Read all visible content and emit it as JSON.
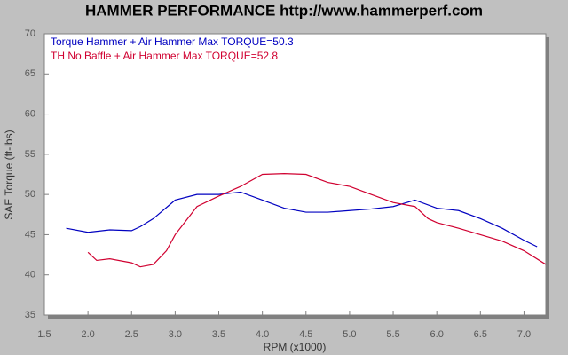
{
  "chart_data": {
    "type": "line",
    "title": "HAMMER PERFORMANCE http://www.hammerperf.com",
    "xlabel": "RPM (x1000)",
    "ylabel": "SAE Torque (ft-lbs)",
    "xlim": [
      1.5,
      7.25
    ],
    "ylim": [
      35,
      70
    ],
    "xticks": [
      1.5,
      {
        "value": 2,
        "label": "2.0"
      },
      2.5,
      {
        "value": 3,
        "label": "3.0"
      },
      3.5,
      {
        "value": 4,
        "label": "4.0"
      },
      4.5,
      {
        "value": 5,
        "label": "5.0"
      },
      5.5,
      {
        "value": 6,
        "label": "6.0"
      },
      6.5,
      {
        "value": 7,
        "label": "7.0"
      }
    ],
    "yticks": [
      35,
      40,
      45,
      50,
      55,
      60,
      65,
      70
    ],
    "grid": false,
    "legend": "top-left",
    "series": [
      {
        "name": "Torque Hammer + Air Hammer  Max TORQUE=50.3",
        "color": "#0000c0",
        "x": [
          1.75,
          2.0,
          2.25,
          2.5,
          2.6,
          2.75,
          3.0,
          3.25,
          3.5,
          3.75,
          4.0,
          4.25,
          4.5,
          4.75,
          5.0,
          5.25,
          5.5,
          5.75,
          6.0,
          6.25,
          6.5,
          6.75,
          7.0,
          7.15
        ],
        "values": [
          45.8,
          45.3,
          45.6,
          45.5,
          46.0,
          47.0,
          49.3,
          50.0,
          50.0,
          50.3,
          49.3,
          48.3,
          47.8,
          47.8,
          48.0,
          48.2,
          48.5,
          49.3,
          48.3,
          48.0,
          47.0,
          45.8,
          44.3,
          43.5
        ]
      },
      {
        "name": "TH No Baffle + Air Hammer  Max TORQUE=52.8",
        "color": "#d00030",
        "x": [
          2.0,
          2.1,
          2.25,
          2.5,
          2.6,
          2.75,
          2.9,
          3.0,
          3.25,
          3.5,
          3.75,
          4.0,
          4.25,
          4.5,
          4.75,
          5.0,
          5.25,
          5.5,
          5.75,
          5.9,
          6.0,
          6.25,
          6.5,
          6.75,
          7.0,
          7.25
        ],
        "values": [
          42.8,
          41.8,
          42.0,
          41.5,
          41.0,
          41.3,
          43.0,
          45.0,
          48.5,
          49.8,
          51.0,
          52.5,
          52.6,
          52.5,
          51.5,
          51.0,
          50.0,
          49.0,
          48.5,
          47.0,
          46.5,
          45.8,
          45.0,
          44.2,
          43.0,
          41.3
        ]
      }
    ]
  }
}
